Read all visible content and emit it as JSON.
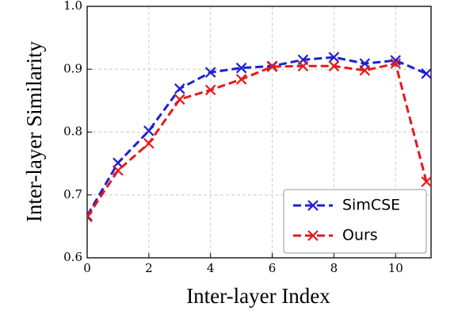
{
  "chart_data": {
    "type": "line",
    "xlabel": "Inter-layer Index",
    "ylabel": "Inter-layer Similarity",
    "x": [
      0,
      1,
      2,
      3,
      4,
      5,
      6,
      7,
      8,
      9,
      10,
      11
    ],
    "series": [
      {
        "name": "SimCSE",
        "color": "#1f1fd6",
        "values": [
          0.667,
          0.751,
          0.802,
          0.869,
          0.895,
          0.902,
          0.905,
          0.915,
          0.919,
          0.909,
          0.914,
          0.893
        ]
      },
      {
        "name": "Ours",
        "color": "#e31a1c",
        "values": [
          0.665,
          0.739,
          0.782,
          0.852,
          0.867,
          0.884,
          0.904,
          0.905,
          0.905,
          0.898,
          0.909,
          0.721
        ]
      }
    ],
    "xlim": [
      0,
      11.15
    ],
    "ylim": [
      0.6,
      1
    ],
    "xticks": [
      0,
      2,
      4,
      6,
      8,
      10
    ],
    "yticks": [
      0.6,
      0.7,
      0.8,
      0.9,
      {
        "value": 1,
        "label": "1.0"
      }
    ],
    "grid": true,
    "legend": "lower right"
  }
}
